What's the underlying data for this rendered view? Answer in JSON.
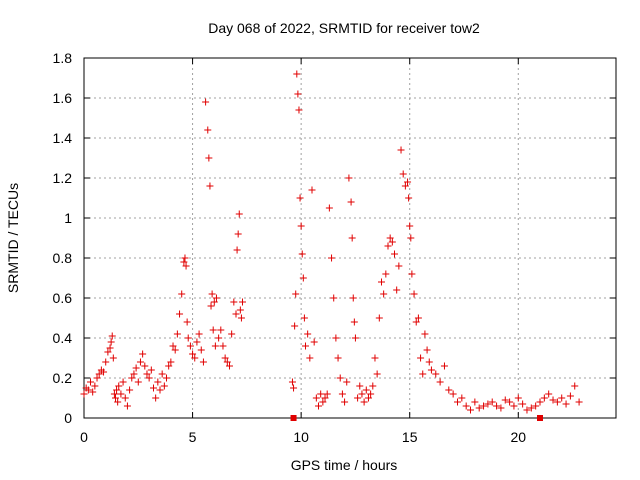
{
  "chart_data": {
    "type": "scatter",
    "title": "Day 068 of 2022, SRMTID for receiver tow2",
    "xlabel": "GPS time / hours",
    "ylabel": "SRMTID / TECUs",
    "xlim": [
      0,
      24.5
    ],
    "ylim": [
      0,
      1.8
    ],
    "xticks": [
      0,
      5,
      10,
      15,
      20
    ],
    "xtick_labels": [
      "0",
      "5",
      "10",
      "15",
      "20"
    ],
    "yticks": [
      0,
      0.2,
      0.4,
      0.6,
      0.8,
      1,
      1.2,
      1.4,
      1.6,
      1.8
    ],
    "ytick_labels": [
      "0",
      "0.2",
      "0.4",
      "0.6",
      "0.8",
      "1",
      "1.2",
      "1.4",
      "1.6",
      "1.8"
    ],
    "grid": true,
    "marker": "+",
    "marker_color": "#e00000",
    "series": [
      {
        "name": "SRMTID",
        "x": [
          0.0,
          0.1,
          0.2,
          0.3,
          0.4,
          0.5,
          0.6,
          0.7,
          0.8,
          0.9,
          1.0,
          1.1,
          1.2,
          1.25,
          1.3,
          1.35,
          1.4,
          1.45,
          1.5,
          1.55,
          1.6,
          1.7,
          1.8,
          1.9,
          2.0,
          2.1,
          2.2,
          2.3,
          2.4,
          2.5,
          2.6,
          2.7,
          2.8,
          2.9,
          3.0,
          3.1,
          3.2,
          3.3,
          3.4,
          3.5,
          3.6,
          3.7,
          3.8,
          3.9,
          4.0,
          4.1,
          4.2,
          4.3,
          4.4,
          4.5,
          4.6,
          4.65,
          4.7,
          4.75,
          4.8,
          4.9,
          5.0,
          5.1,
          5.2,
          5.3,
          5.4,
          5.5,
          5.6,
          5.7,
          5.75,
          5.8,
          5.85,
          5.9,
          5.95,
          6.0,
          6.05,
          6.1,
          6.2,
          6.3,
          6.4,
          6.5,
          6.6,
          6.7,
          6.8,
          6.9,
          7.0,
          7.05,
          7.1,
          7.15,
          7.2,
          7.25,
          7.3,
          9.6,
          9.65,
          9.7,
          9.75,
          9.8,
          9.85,
          9.9,
          9.95,
          10.0,
          10.05,
          10.1,
          10.15,
          10.2,
          10.3,
          10.4,
          10.5,
          10.6,
          10.7,
          10.8,
          10.9,
          11.0,
          11.1,
          11.2,
          11.3,
          11.4,
          11.5,
          11.6,
          11.7,
          11.8,
          11.9,
          12.0,
          12.1,
          12.2,
          12.3,
          12.35,
          12.4,
          12.45,
          12.5,
          12.6,
          12.7,
          12.8,
          12.9,
          13.0,
          13.1,
          13.2,
          13.3,
          13.4,
          13.5,
          13.6,
          13.7,
          13.8,
          13.9,
          14.0,
          14.1,
          14.2,
          14.3,
          14.4,
          14.5,
          14.6,
          14.7,
          14.8,
          14.9,
          14.95,
          15.0,
          15.05,
          15.1,
          15.2,
          15.3,
          15.4,
          15.5,
          15.6,
          15.7,
          15.8,
          15.9,
          16.0,
          16.2,
          16.4,
          16.6,
          16.8,
          17.0,
          17.2,
          17.4,
          17.6,
          17.8,
          18.0,
          18.2,
          18.4,
          18.6,
          18.8,
          19.0,
          19.2,
          19.4,
          19.6,
          19.8,
          20.0,
          20.2,
          20.4,
          20.6,
          20.8,
          21.0,
          21.2,
          21.4,
          21.6,
          21.8,
          22.0,
          22.2,
          22.4,
          22.6,
          22.8
        ],
        "y": [
          0.12,
          0.15,
          0.14,
          0.18,
          0.13,
          0.16,
          0.2,
          0.22,
          0.24,
          0.23,
          0.28,
          0.33,
          0.35,
          0.38,
          0.41,
          0.3,
          0.12,
          0.1,
          0.14,
          0.08,
          0.16,
          0.12,
          0.18,
          0.1,
          0.06,
          0.14,
          0.2,
          0.22,
          0.25,
          0.18,
          0.28,
          0.32,
          0.26,
          0.22,
          0.2,
          0.24,
          0.15,
          0.1,
          0.18,
          0.14,
          0.22,
          0.16,
          0.2,
          0.26,
          0.28,
          0.36,
          0.34,
          0.42,
          0.52,
          0.62,
          0.78,
          0.8,
          0.76,
          0.48,
          0.4,
          0.36,
          0.32,
          0.3,
          0.38,
          0.42,
          0.34,
          0.28,
          1.58,
          1.44,
          1.3,
          1.16,
          0.56,
          0.62,
          0.44,
          0.58,
          0.36,
          0.6,
          0.4,
          0.44,
          0.36,
          0.3,
          0.28,
          0.26,
          0.42,
          0.58,
          0.52,
          0.84,
          0.92,
          1.02,
          0.54,
          0.5,
          0.58,
          0.18,
          0.15,
          0.46,
          0.62,
          1.72,
          1.62,
          1.54,
          1.1,
          0.96,
          0.82,
          0.7,
          0.5,
          0.36,
          0.42,
          0.3,
          1.14,
          0.38,
          0.1,
          0.06,
          0.12,
          0.08,
          0.1,
          0.12,
          1.05,
          0.8,
          0.6,
          0.4,
          0.3,
          0.2,
          0.12,
          0.08,
          0.18,
          1.2,
          1.08,
          0.9,
          0.6,
          0.48,
          0.4,
          0.1,
          0.16,
          0.12,
          0.08,
          0.14,
          0.1,
          0.12,
          0.16,
          0.3,
          0.22,
          0.5,
          0.68,
          0.62,
          0.72,
          0.86,
          0.9,
          0.88,
          0.82,
          0.64,
          0.76,
          1.34,
          1.22,
          1.16,
          1.18,
          1.1,
          0.96,
          0.9,
          0.72,
          0.62,
          0.48,
          0.5,
          0.3,
          0.22,
          0.42,
          0.34,
          0.28,
          0.24,
          0.22,
          0.18,
          0.26,
          0.14,
          0.12,
          0.08,
          0.1,
          0.06,
          0.04,
          0.08,
          0.05,
          0.06,
          0.07,
          0.08,
          0.06,
          0.05,
          0.09,
          0.08,
          0.06,
          0.1,
          0.07,
          0.04,
          0.05,
          0.06,
          0.08,
          0.1,
          0.12,
          0.09,
          0.08,
          0.1,
          0.07,
          0.11,
          0.16,
          0.08
        ]
      }
    ],
    "outlier_points": [
      {
        "x": 9.65,
        "y": 0.0
      },
      {
        "x": 21.0,
        "y": 0.0
      }
    ]
  }
}
